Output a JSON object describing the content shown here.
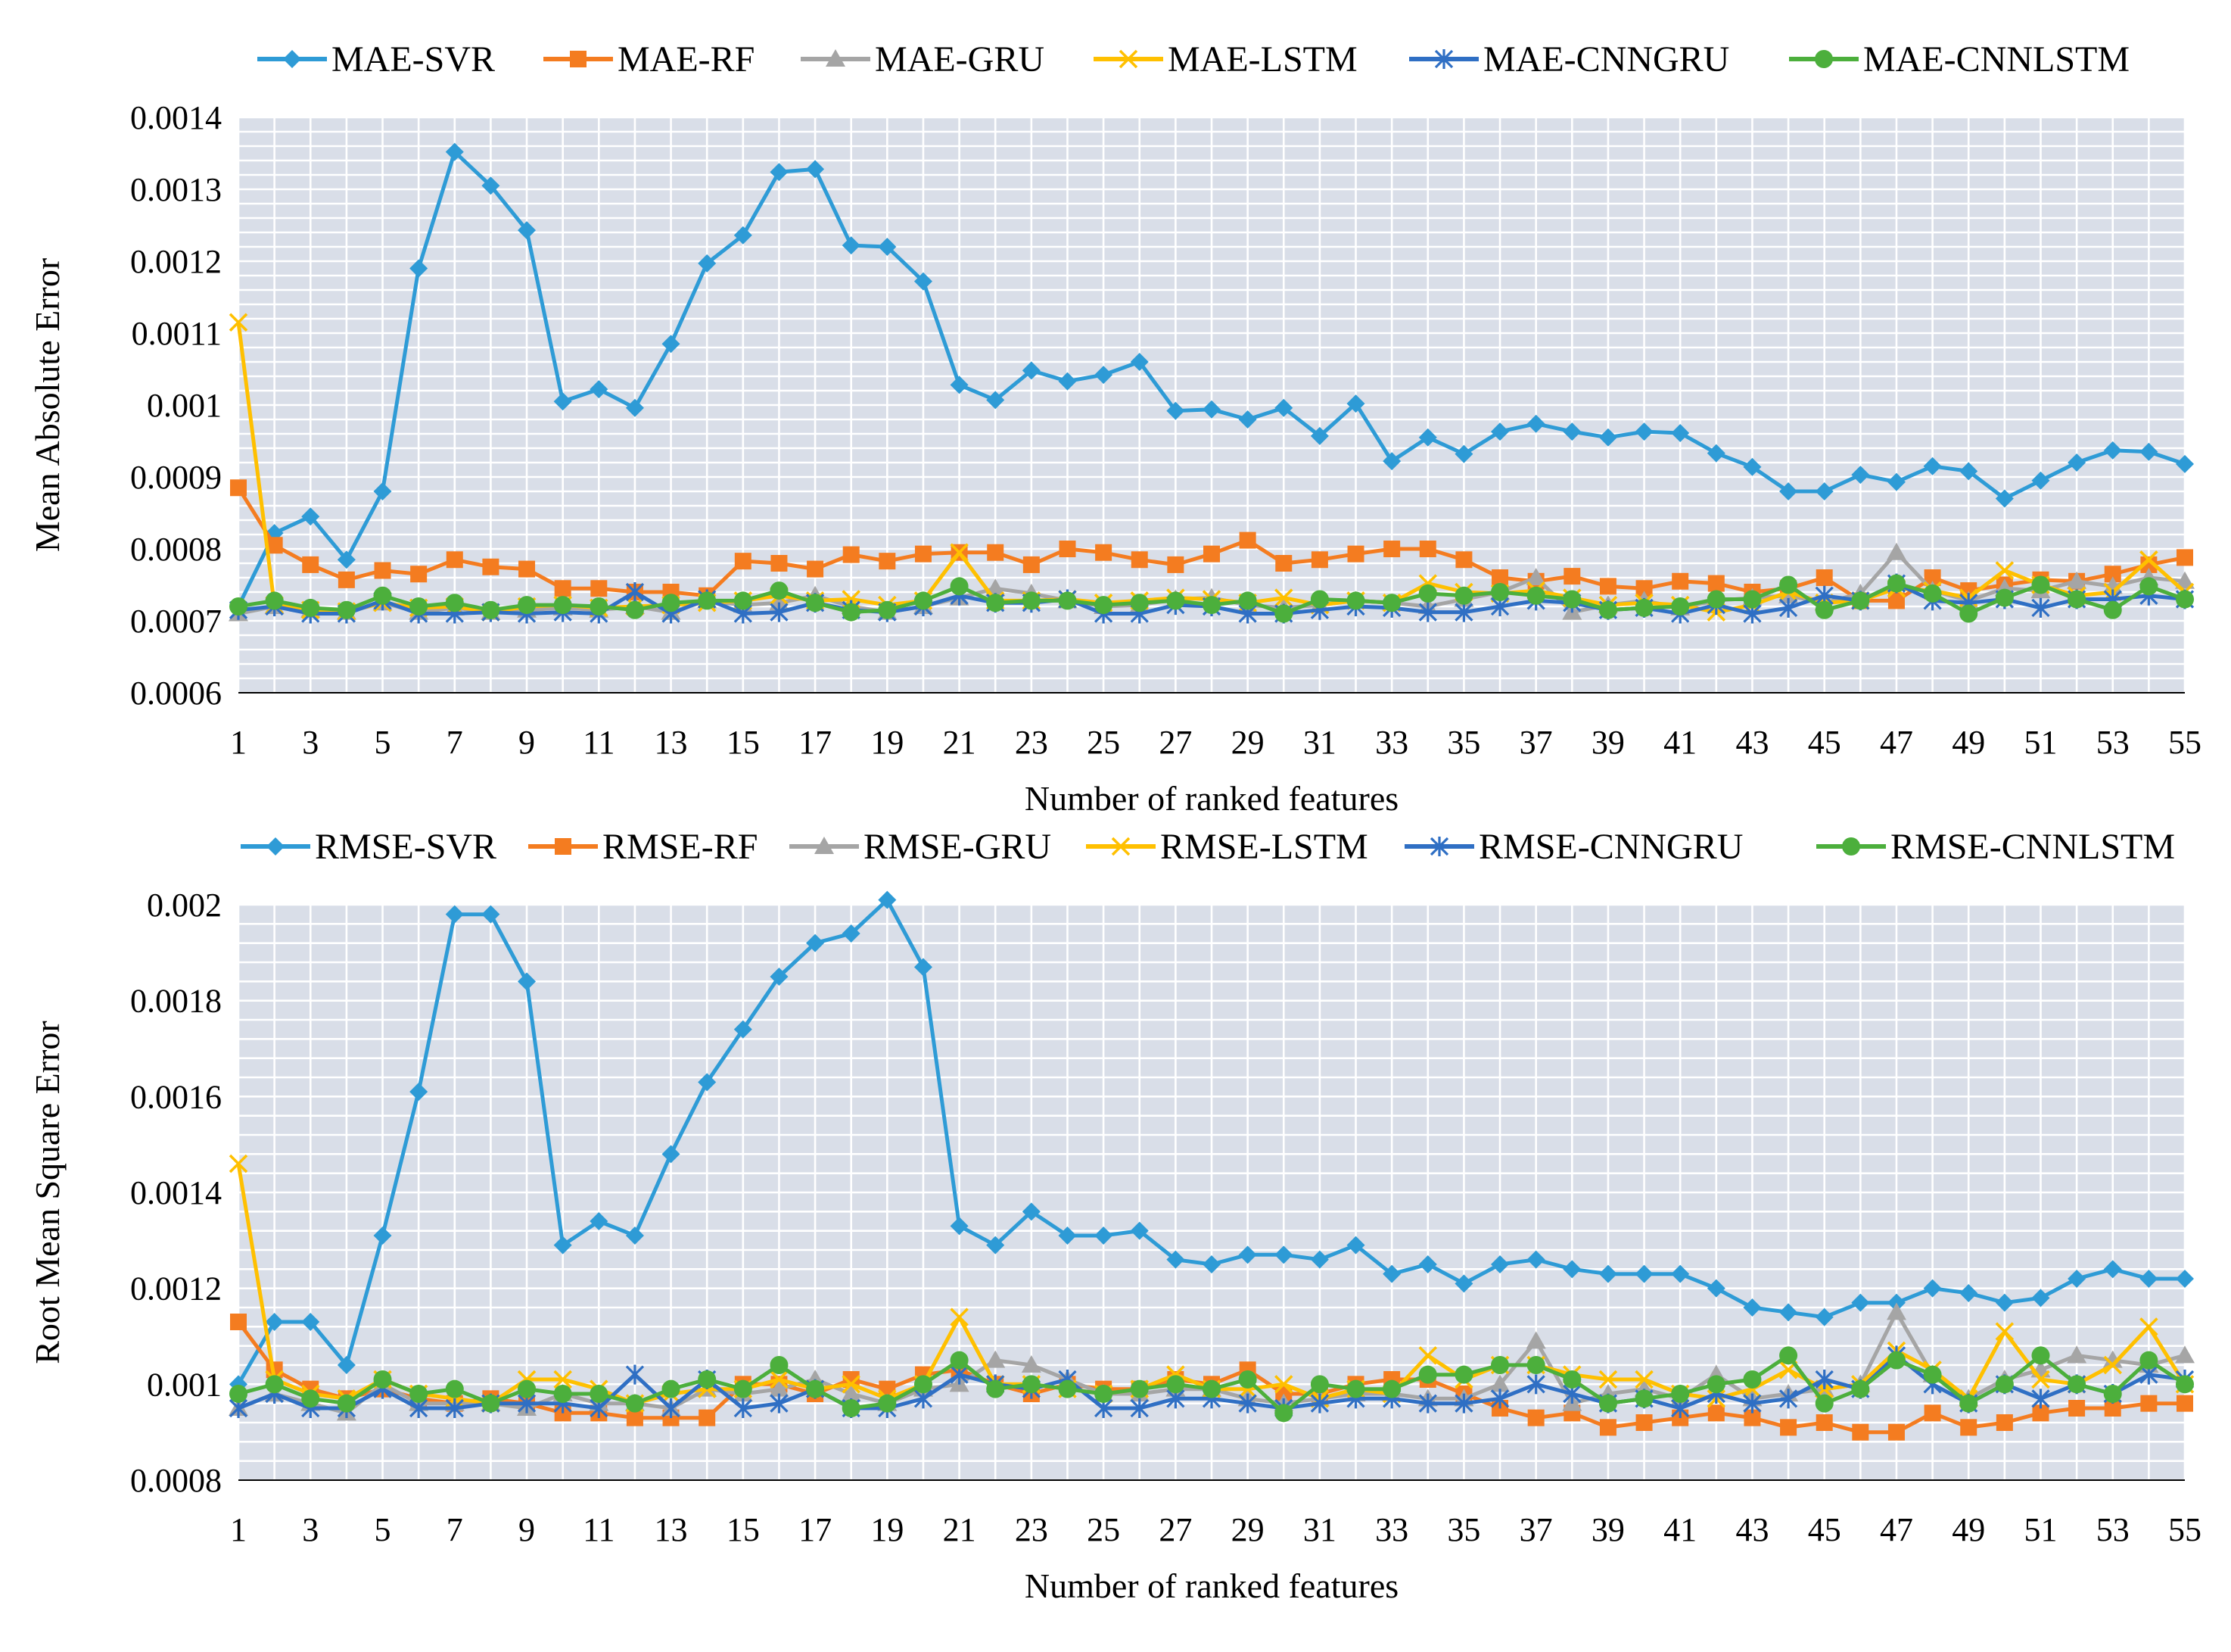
{
  "chart_data": [
    {
      "type": "line",
      "title": "",
      "xlabel": "Number of ranked features",
      "ylabel": "Mean Absolute Error",
      "ylim": [
        0.0006,
        0.0014
      ],
      "yticks": [
        "0.0006",
        "0.0007",
        "0.0008",
        "0.0009",
        "0.001",
        "0.0011",
        "0.0012",
        "0.0013",
        "0.0014"
      ],
      "xticks": [
        "1",
        "3",
        "5",
        "7",
        "9",
        "11",
        "13",
        "15",
        "17",
        "19",
        "21",
        "23",
        "25",
        "27",
        "29",
        "31",
        "33",
        "35",
        "37",
        "39",
        "41",
        "43",
        "45",
        "47",
        "49",
        "51",
        "53",
        "55"
      ],
      "x": [
        1,
        2,
        3,
        4,
        5,
        6,
        7,
        8,
        9,
        10,
        11,
        12,
        13,
        14,
        15,
        16,
        17,
        18,
        19,
        20,
        21,
        22,
        23,
        24,
        25,
        26,
        27,
        28,
        29,
        30,
        31,
        32,
        33,
        34,
        35,
        36,
        37,
        38,
        39,
        40,
        41,
        42,
        43,
        44,
        45,
        46,
        47,
        48,
        49,
        50,
        51,
        52,
        53,
        54,
        55
      ],
      "legend_position": "top",
      "grid": true,
      "series": [
        {
          "name": "MAE-SVR",
          "color": "#2e9bd6",
          "marker": "diamond",
          "values": [
            0.00072,
            0.000822,
            0.000845,
            0.000785,
            0.00088,
            0.00119,
            0.001352,
            0.001305,
            0.001243,
            0.001005,
            0.001022,
            0.000996,
            0.001085,
            0.001197,
            0.001236,
            0.001324,
            0.001328,
            0.001222,
            0.00122,
            0.001172,
            0.001028,
            0.001007,
            0.001048,
            0.001033,
            0.001042,
            0.00106,
            0.000992,
            0.000994,
            0.00098,
            0.000996,
            0.000957,
            0.001002,
            0.000922,
            0.000955,
            0.000932,
            0.000963,
            0.000974,
            0.000963,
            0.000955,
            0.000963,
            0.000961,
            0.000933,
            0.000914,
            0.00088,
            0.00088,
            0.000903,
            0.000893,
            0.000915,
            0.000908,
            0.00087,
            0.000895,
            0.00092,
            0.000937,
            0.000935,
            0.000918
          ]
        },
        {
          "name": "MAE-RF",
          "color": "#f47c20",
          "marker": "square",
          "values": [
            0.000885,
            0.000805,
            0.000778,
            0.000757,
            0.00077,
            0.000765,
            0.000785,
            0.000775,
            0.000772,
            0.000745,
            0.000745,
            0.00074,
            0.00074,
            0.000735,
            0.000783,
            0.00078,
            0.000772,
            0.000792,
            0.000783,
            0.000793,
            0.000795,
            0.000795,
            0.000778,
            0.0008,
            0.000795,
            0.000785,
            0.000778,
            0.000793,
            0.000812,
            0.00078,
            0.000785,
            0.000793,
            0.0008,
            0.0008,
            0.000785,
            0.00076,
            0.000755,
            0.000762,
            0.000748,
            0.000745,
            0.000755,
            0.000752,
            0.00074,
            0.000745,
            0.00076,
            0.000728,
            0.000728,
            0.00076,
            0.000742,
            0.00075,
            0.000757,
            0.000755,
            0.000765,
            0.000778,
            0.000788
          ]
        },
        {
          "name": "MAE-GRU",
          "color": "#a5a5a5",
          "marker": "triangle",
          "values": [
            0.00071,
            0.00072,
            0.000715,
            0.000712,
            0.000725,
            0.000712,
            0.000718,
            0.000712,
            0.000715,
            0.000718,
            0.000715,
            0.00072,
            0.000712,
            0.000728,
            0.000722,
            0.000725,
            0.000735,
            0.00072,
            0.000712,
            0.00072,
            0.000732,
            0.000745,
            0.000738,
            0.000728,
            0.00072,
            0.000722,
            0.00073,
            0.000732,
            0.000722,
            0.000718,
            0.000722,
            0.000728,
            0.000725,
            0.00072,
            0.00073,
            0.00074,
            0.00076,
            0.000712,
            0.000722,
            0.000728,
            0.000718,
            0.000728,
            0.000732,
            0.000735,
            0.000725,
            0.000738,
            0.000795,
            0.000742,
            0.000728,
            0.000745,
            0.000742,
            0.000755,
            0.000748,
            0.00076,
            0.000755
          ]
        },
        {
          "name": "MAE-LSTM",
          "color": "#ffc000",
          "marker": "x",
          "values": [
            0.001115,
            0.000722,
            0.000715,
            0.000713,
            0.000725,
            0.000718,
            0.00072,
            0.000712,
            0.00072,
            0.000722,
            0.000718,
            0.00072,
            0.000722,
            0.000725,
            0.000728,
            0.000735,
            0.000728,
            0.00073,
            0.000722,
            0.000728,
            0.000795,
            0.000728,
            0.000728,
            0.00073,
            0.000725,
            0.000728,
            0.000732,
            0.00073,
            0.000725,
            0.000732,
            0.000722,
            0.000728,
            0.000725,
            0.000752,
            0.00074,
            0.000738,
            0.000742,
            0.000732,
            0.000722,
            0.000725,
            0.000722,
            0.000712,
            0.000722,
            0.00074,
            0.000725,
            0.000728,
            0.000745,
            0.000742,
            0.000732,
            0.00077,
            0.00075,
            0.000735,
            0.00074,
            0.000785,
            0.00074
          ]
        },
        {
          "name": "MAE-CNNGRU",
          "color": "#2f6fc4",
          "marker": "star",
          "values": [
            0.000715,
            0.00072,
            0.00071,
            0.00071,
            0.000728,
            0.00071,
            0.00071,
            0.000712,
            0.00071,
            0.000712,
            0.00071,
            0.00074,
            0.00071,
            0.00073,
            0.00071,
            0.000712,
            0.000725,
            0.000715,
            0.000712,
            0.00072,
            0.000735,
            0.000725,
            0.000725,
            0.00073,
            0.00071,
            0.00071,
            0.000722,
            0.00072,
            0.00071,
            0.00071,
            0.000715,
            0.00072,
            0.000718,
            0.000712,
            0.000712,
            0.00072,
            0.000728,
            0.000725,
            0.000715,
            0.000718,
            0.00071,
            0.000722,
            0.00071,
            0.000718,
            0.000735,
            0.000728,
            0.000752,
            0.000728,
            0.000725,
            0.00073,
            0.000718,
            0.00073,
            0.00073,
            0.000735,
            0.00073
          ]
        },
        {
          "name": "MAE-CNNLSTM",
          "color": "#4caf3c",
          "marker": "circle",
          "values": [
            0.00072,
            0.000728,
            0.000718,
            0.000715,
            0.000735,
            0.00072,
            0.000725,
            0.000715,
            0.000722,
            0.000722,
            0.00072,
            0.000715,
            0.000725,
            0.000728,
            0.000728,
            0.000742,
            0.000725,
            0.000712,
            0.000715,
            0.000728,
            0.000748,
            0.000725,
            0.000728,
            0.000728,
            0.000722,
            0.000725,
            0.000728,
            0.000722,
            0.000728,
            0.00071,
            0.00073,
            0.000728,
            0.000725,
            0.000738,
            0.000735,
            0.00074,
            0.000735,
            0.00073,
            0.000715,
            0.000718,
            0.00072,
            0.00073,
            0.00073,
            0.00075,
            0.000715,
            0.000728,
            0.000752,
            0.000738,
            0.00071,
            0.000732,
            0.00075,
            0.00073,
            0.000715,
            0.000748,
            0.00073
          ]
        }
      ]
    },
    {
      "type": "line",
      "title": "",
      "xlabel": "Number of ranked features",
      "ylabel": "Root Mean Square Error",
      "ylim": [
        0.0008,
        0.002
      ],
      "yticks": [
        "0.0008",
        "0.001",
        "0.0012",
        "0.0014",
        "0.0016",
        "0.0018",
        "0.002"
      ],
      "xticks": [
        "1",
        "3",
        "5",
        "7",
        "9",
        "11",
        "13",
        "15",
        "17",
        "19",
        "21",
        "23",
        "25",
        "27",
        "29",
        "31",
        "33",
        "35",
        "37",
        "39",
        "41",
        "43",
        "45",
        "47",
        "49",
        "51",
        "53",
        "55"
      ],
      "x": [
        1,
        2,
        3,
        4,
        5,
        6,
        7,
        8,
        9,
        10,
        11,
        12,
        13,
        14,
        15,
        16,
        17,
        18,
        19,
        20,
        21,
        22,
        23,
        24,
        25,
        26,
        27,
        28,
        29,
        30,
        31,
        32,
        33,
        34,
        35,
        36,
        37,
        38,
        39,
        40,
        41,
        42,
        43,
        44,
        45,
        46,
        47,
        48,
        49,
        50,
        51,
        52,
        53,
        54,
        55
      ],
      "legend_position": "top",
      "grid": true,
      "series": [
        {
          "name": "RMSE-SVR",
          "color": "#2e9bd6",
          "marker": "diamond",
          "values": [
            0.001,
            0.00113,
            0.00113,
            0.00104,
            0.00131,
            0.00161,
            0.00198,
            0.00198,
            0.00184,
            0.00129,
            0.00134,
            0.00131,
            0.00148,
            0.00163,
            0.00174,
            0.00185,
            0.00192,
            0.00194,
            0.00201,
            0.00187,
            0.00133,
            0.00129,
            0.00136,
            0.00131,
            0.00131,
            0.00132,
            0.00126,
            0.00125,
            0.00127,
            0.00127,
            0.00126,
            0.00129,
            0.00123,
            0.00125,
            0.00121,
            0.00125,
            0.00126,
            0.00124,
            0.00123,
            0.00123,
            0.00123,
            0.0012,
            0.00116,
            0.00115,
            0.00114,
            0.00117,
            0.00117,
            0.0012,
            0.00119,
            0.00117,
            0.00118,
            0.00122,
            0.00124,
            0.00122,
            0.00122
          ]
        },
        {
          "name": "RMSE-RF",
          "color": "#f47c20",
          "marker": "square",
          "values": [
            0.00113,
            0.00103,
            0.00099,
            0.00097,
            0.00099,
            0.00097,
            0.00096,
            0.00097,
            0.00096,
            0.00094,
            0.00094,
            0.00093,
            0.00093,
            0.00093,
            0.001,
            0.001,
            0.00098,
            0.00101,
            0.00099,
            0.00102,
            0.00103,
            0.001,
            0.00098,
            0.001,
            0.00099,
            0.00099,
            0.00101,
            0.001,
            0.00103,
            0.00098,
            0.00098,
            0.001,
            0.00101,
            0.00101,
            0.00098,
            0.00095,
            0.00093,
            0.00094,
            0.00091,
            0.00092,
            0.00093,
            0.00094,
            0.00093,
            0.00091,
            0.00092,
            0.0009,
            0.0009,
            0.00094,
            0.00091,
            0.00092,
            0.00094,
            0.00095,
            0.00095,
            0.00096,
            0.00096
          ]
        },
        {
          "name": "RMSE-GRU",
          "color": "#a5a5a5",
          "marker": "triangle",
          "values": [
            0.00095,
            0.00098,
            0.00096,
            0.00094,
            0.001,
            0.00096,
            0.00096,
            0.00096,
            0.00095,
            0.00098,
            0.00096,
            0.00096,
            0.00095,
            0.00099,
            0.00098,
            0.00099,
            0.00101,
            0.00098,
            0.00096,
            0.00099,
            0.001,
            0.00105,
            0.00104,
            0.00101,
            0.00098,
            0.00098,
            0.00099,
            0.00099,
            0.00097,
            0.00096,
            0.00097,
            0.00098,
            0.00098,
            0.00097,
            0.00097,
            0.001,
            0.00109,
            0.00096,
            0.00098,
            0.00099,
            0.00097,
            0.00102,
            0.00097,
            0.00098,
            0.00099,
            0.001,
            0.00115,
            0.00102,
            0.00097,
            0.00101,
            0.00103,
            0.00106,
            0.00105,
            0.00104,
            0.00106
          ]
        },
        {
          "name": "RMSE-LSTM",
          "color": "#ffc000",
          "marker": "x",
          "values": [
            0.00146,
            0.00101,
            0.00098,
            0.00097,
            0.00101,
            0.00098,
            0.00097,
            0.00096,
            0.00101,
            0.00101,
            0.00099,
            0.00096,
            0.00098,
            0.00099,
            0.00099,
            0.00101,
            0.00099,
            0.001,
            0.00097,
            0.001,
            0.00114,
            0.001,
            0.001,
            0.00099,
            0.00098,
            0.00099,
            0.00102,
            0.00099,
            0.00099,
            0.001,
            0.00097,
            0.00099,
            0.00098,
            0.00106,
            0.00101,
            0.00104,
            0.00104,
            0.00102,
            0.00101,
            0.00101,
            0.00098,
            0.00097,
            0.00099,
            0.00103,
            0.00099,
            0.001,
            0.00107,
            0.00103,
            0.00097,
            0.00111,
            0.00101,
            0.001,
            0.00104,
            0.00112,
            0.001
          ]
        },
        {
          "name": "RMSE-CNNGRU",
          "color": "#2f6fc4",
          "marker": "star",
          "values": [
            0.00095,
            0.00098,
            0.00095,
            0.00095,
            0.00099,
            0.00095,
            0.00095,
            0.00096,
            0.00096,
            0.00096,
            0.00095,
            0.00102,
            0.00095,
            0.00101,
            0.00095,
            0.00096,
            0.00099,
            0.00095,
            0.00095,
            0.00097,
            0.00102,
            0.001,
            0.00099,
            0.00101,
            0.00095,
            0.00095,
            0.00097,
            0.00097,
            0.00096,
            0.00095,
            0.00096,
            0.00097,
            0.00097,
            0.00096,
            0.00096,
            0.00097,
            0.001,
            0.00098,
            0.00096,
            0.00097,
            0.00095,
            0.00098,
            0.00096,
            0.00097,
            0.00101,
            0.00099,
            0.00106,
            0.001,
            0.00096,
            0.001,
            0.00097,
            0.001,
            0.00098,
            0.00102,
            0.00101
          ]
        },
        {
          "name": "RMSE-CNNLSTM",
          "color": "#4caf3c",
          "marker": "circle",
          "values": [
            0.00098,
            0.001,
            0.00097,
            0.00096,
            0.00101,
            0.00098,
            0.00099,
            0.00096,
            0.00099,
            0.00098,
            0.00098,
            0.00096,
            0.00099,
            0.00101,
            0.00099,
            0.00104,
            0.00099,
            0.00095,
            0.00096,
            0.001,
            0.00105,
            0.00099,
            0.001,
            0.00099,
            0.00098,
            0.00099,
            0.001,
            0.00099,
            0.00101,
            0.00094,
            0.001,
            0.00099,
            0.00099,
            0.00102,
            0.00102,
            0.00104,
            0.00104,
            0.00101,
            0.00096,
            0.00097,
            0.00098,
            0.001,
            0.00101,
            0.00106,
            0.00096,
            0.00099,
            0.00105,
            0.00102,
            0.00096,
            0.001,
            0.00106,
            0.001,
            0.00098,
            0.00105,
            0.001
          ]
        }
      ]
    }
  ]
}
